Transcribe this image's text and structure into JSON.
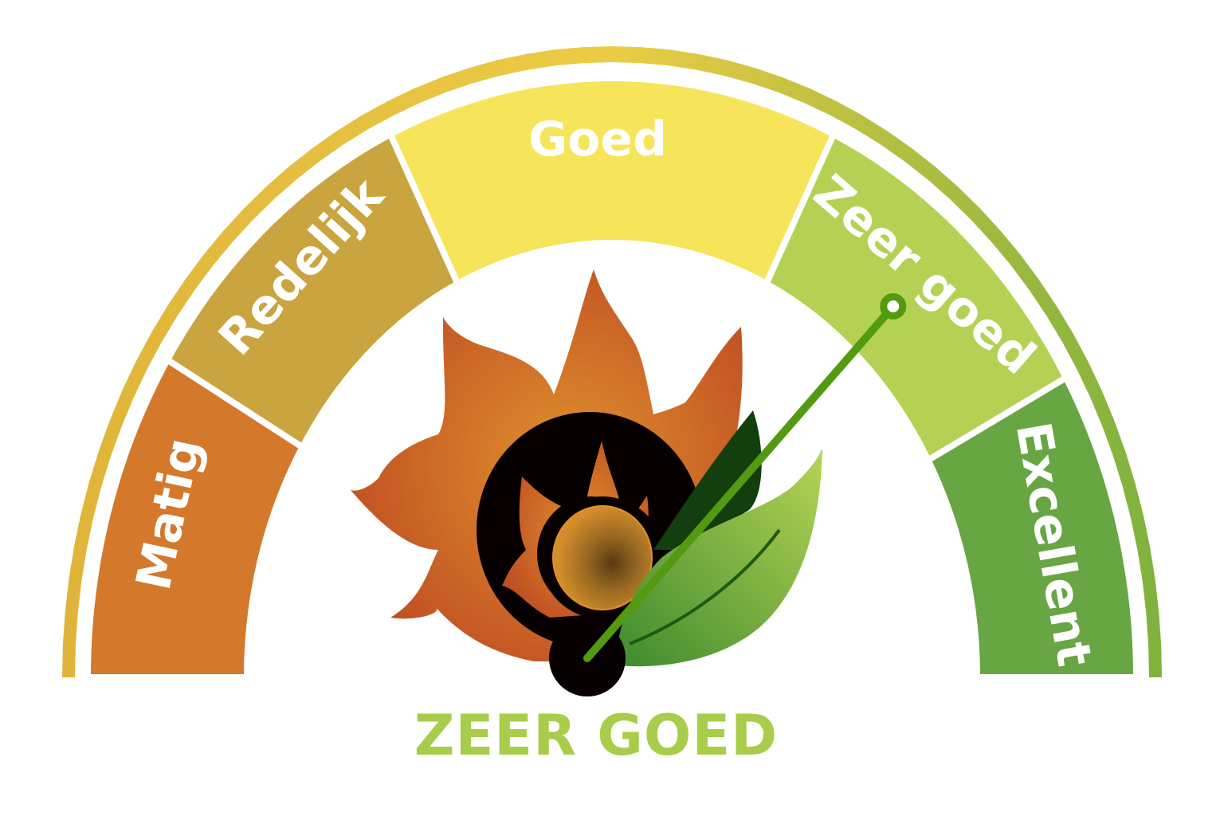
{
  "gauge": {
    "segments": [
      {
        "label": "Matig",
        "color": "#d4782b"
      },
      {
        "label": "Redelijk",
        "color": "#c9a43f"
      },
      {
        "label": "Goed",
        "color": "#f6e55a"
      },
      {
        "label": "Zeer goed",
        "color": "#b4d153"
      },
      {
        "label": "Excellent",
        "color": "#68a543"
      }
    ],
    "selected_index": 3,
    "needle_color": "#529a10",
    "outer_band_colors": [
      "#dfb43a",
      "#eccc45",
      "#7eb23e"
    ]
  },
  "result": {
    "label": "ZEER GOED",
    "color": "#a8cd4b"
  },
  "icon": {
    "name": "flame-leaf-icon"
  }
}
